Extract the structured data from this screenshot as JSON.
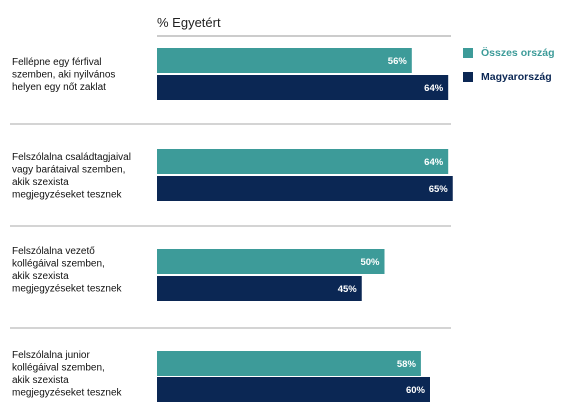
{
  "chart_data": {
    "type": "bar",
    "orientation": "horizontal",
    "title": "% Egyetért",
    "xlim": [
      0,
      100
    ],
    "grid": false,
    "legend_position": "right",
    "categories": [
      [
        "Fellépne egy férfival",
        "szemben, aki nyilvános",
        "helyen egy nőt zaklat"
      ],
      [
        "Felszólalna családtagjaival",
        "vagy barátaival szemben,",
        "akik szexista",
        "megjegyzéseket tesznek"
      ],
      [
        "Felszólalna vezető",
        "kollégáival szemben,",
        "akik szexista",
        "megjegyzéseket tesznek"
      ],
      [
        "Felszólalna junior",
        "kollégáival szemben,",
        "akik szexista",
        "megjegyzéseket tesznek"
      ]
    ],
    "series": [
      {
        "name": "Összes ország",
        "color": "#3d9b99",
        "legend_text_color": "#3d9b99",
        "values": [
          56,
          64,
          50,
          58
        ],
        "labels": [
          "56%",
          "64%",
          "50%",
          "58%"
        ]
      },
      {
        "name": "Magyarország",
        "color": "#0b2754",
        "legend_text_color": "#0b2754",
        "values": [
          64,
          65,
          45,
          60
        ],
        "labels": [
          "64%",
          "65%",
          "45%",
          "60%"
        ]
      }
    ]
  }
}
